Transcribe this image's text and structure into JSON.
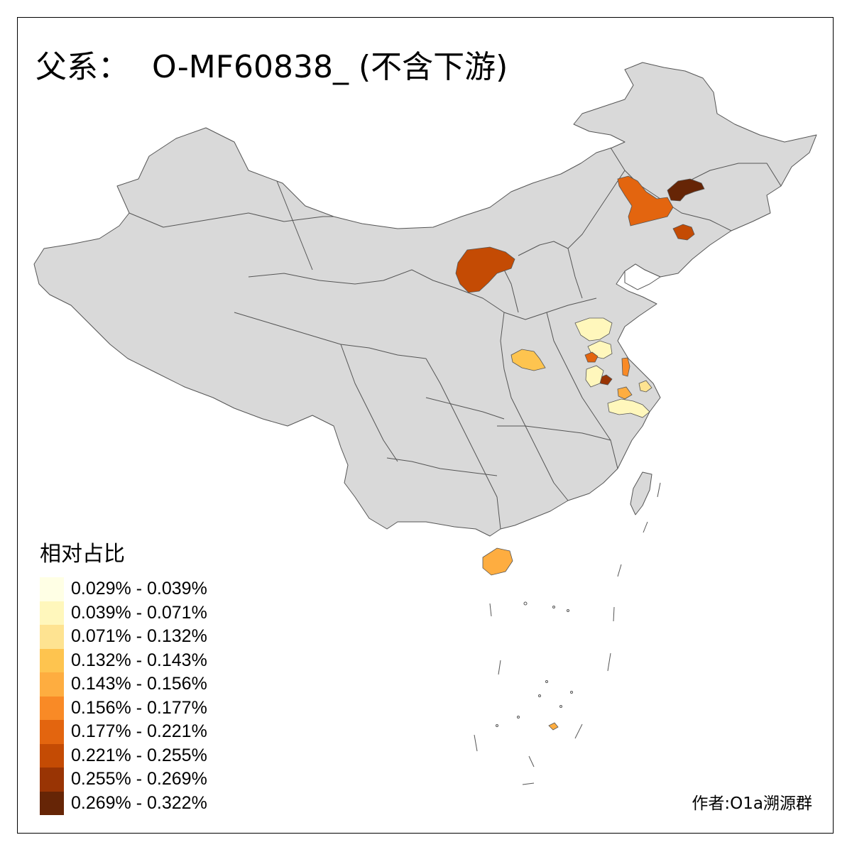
{
  "title": {
    "prefix": "父系：",
    "main": "O-MF60838_ (不含下游)"
  },
  "legend": {
    "title": "相对占比",
    "items": [
      {
        "label": "0.029% - 0.039%",
        "color": "#FFFFE5"
      },
      {
        "label": "0.039% - 0.071%",
        "color": "#FFF7BC"
      },
      {
        "label": "0.071% - 0.132%",
        "color": "#FEE391"
      },
      {
        "label": "0.132% - 0.143%",
        "color": "#FEC44F"
      },
      {
        "label": "0.143% - 0.156%",
        "color": "#FEAD40"
      },
      {
        "label": "0.156% - 0.177%",
        "color": "#F98A26"
      },
      {
        "label": "0.177% - 0.221%",
        "color": "#E3650F"
      },
      {
        "label": "0.221% - 0.255%",
        "color": "#C44B04"
      },
      {
        "label": "0.255% - 0.269%",
        "color": "#993404"
      },
      {
        "label": "0.269% - 0.322%",
        "color": "#662506"
      }
    ]
  },
  "author": "作者:O1a溯源群",
  "map": {
    "base_color": "#D9D9D9",
    "border_color": "#555555",
    "highlighted_regions": [
      {
        "name": "ne-large-region",
        "color": "#E3650F"
      },
      {
        "name": "ne-darkest-region",
        "color": "#662506"
      },
      {
        "name": "liaoning-region",
        "color": "#C44B04"
      },
      {
        "name": "inner-mongolia-region",
        "color": "#C44B04"
      },
      {
        "name": "henan-region",
        "color": "#FEC44F"
      },
      {
        "name": "shandong-region",
        "color": "#FFF7BC"
      },
      {
        "name": "jiangsu-region-a",
        "color": "#FFF7BC"
      },
      {
        "name": "anhui-region-a",
        "color": "#E3650F"
      },
      {
        "name": "anhui-region-b",
        "color": "#993404"
      },
      {
        "name": "jiangsu-region-b",
        "color": "#F98A26"
      },
      {
        "name": "anhui-region-c",
        "color": "#FFF7BC"
      },
      {
        "name": "anhui-region-d",
        "color": "#FEAD40"
      },
      {
        "name": "zhejiang-region",
        "color": "#FFF7BC"
      },
      {
        "name": "shanghai-region",
        "color": "#FEE391"
      },
      {
        "name": "hainan-region",
        "color": "#FEAD40"
      },
      {
        "name": "nanhai-island-region",
        "color": "#FEAD40"
      }
    ]
  }
}
